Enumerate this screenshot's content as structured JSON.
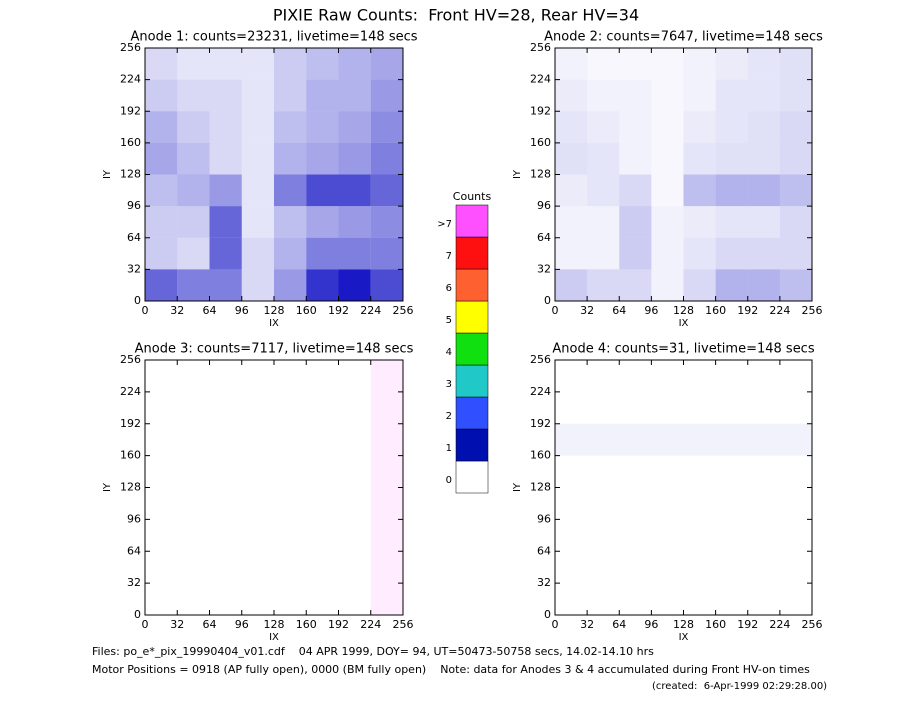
{
  "title": "PIXIE Raw Counts:  Front HV=28, Rear HV=34",
  "footer": [
    "Files: po_e*_pix_19990404_v01.cdf    04 APR 1999, DOY= 94, UT=50473-50758 secs, 14.02-14.10 hrs",
    "Motor Positions = 0918 (AP fully open), 0000 (BM fully open)    Note: data for Anodes 3 & 4 accumulated during Front HV-on times",
    "(created:  6-Apr-1999 02:29:28.00)"
  ],
  "colorbar": {
    "title": "Counts",
    "labels": [
      "0",
      "1",
      "2",
      "3",
      "4",
      "5",
      "6",
      "7",
      ">7"
    ],
    "colors": [
      "#ffffff",
      "#0010b0",
      "#3050ff",
      "#20c8c8",
      "#10e010",
      "#ffff00",
      "#ff6030",
      "#ff1010",
      "#ff50ff"
    ]
  },
  "chart_data": [
    {
      "type": "heatmap",
      "title": "Anode 1: counts=23231, livetime=148 secs",
      "xlabel": "IX",
      "ylabel": "IY",
      "xlim": [
        0,
        256
      ],
      "ylim": [
        0,
        256
      ],
      "xticks": [
        0,
        32,
        64,
        96,
        128,
        160,
        192,
        224,
        256
      ],
      "yticks": [
        0,
        32,
        64,
        96,
        128,
        160,
        192,
        224,
        256
      ],
      "color": "#0000c0",
      "z": [
        [
          0.6,
          0.5,
          0.5,
          0.15,
          0.4,
          0.8,
          0.9,
          0.7
        ],
        [
          0.2,
          0.15,
          0.6,
          0.15,
          0.3,
          0.5,
          0.5,
          0.5
        ],
        [
          0.2,
          0.2,
          0.6,
          0.1,
          0.25,
          0.35,
          0.4,
          0.45
        ],
        [
          0.25,
          0.3,
          0.4,
          0.1,
          0.5,
          0.7,
          0.7,
          0.6
        ],
        [
          0.35,
          0.25,
          0.15,
          0.1,
          0.3,
          0.35,
          0.4,
          0.5
        ],
        [
          0.3,
          0.2,
          0.15,
          0.1,
          0.25,
          0.3,
          0.35,
          0.45
        ],
        [
          0.2,
          0.15,
          0.15,
          0.1,
          0.2,
          0.3,
          0.3,
          0.4
        ],
        [
          0.15,
          0.1,
          0.1,
          0.1,
          0.2,
          0.25,
          0.3,
          0.35
        ]
      ]
    },
    {
      "type": "heatmap",
      "title": "Anode 2: counts=7647, livetime=148 secs",
      "xlabel": "IX",
      "ylabel": "IY",
      "xlim": [
        0,
        256
      ],
      "ylim": [
        0,
        256
      ],
      "xticks": [
        0,
        32,
        64,
        96,
        128,
        160,
        192,
        224,
        256
      ],
      "yticks": [
        0,
        32,
        64,
        96,
        128,
        160,
        192,
        224,
        256
      ],
      "color": "#0000c0",
      "z": [
        [
          0.2,
          0.15,
          0.15,
          0.05,
          0.15,
          0.3,
          0.3,
          0.25
        ],
        [
          0.05,
          0.05,
          0.2,
          0.05,
          0.1,
          0.15,
          0.15,
          0.15
        ],
        [
          0.05,
          0.05,
          0.2,
          0.05,
          0.08,
          0.1,
          0.1,
          0.15
        ],
        [
          0.08,
          0.1,
          0.15,
          0.03,
          0.25,
          0.3,
          0.3,
          0.25
        ],
        [
          0.12,
          0.1,
          0.05,
          0.03,
          0.1,
          0.12,
          0.12,
          0.15
        ],
        [
          0.1,
          0.08,
          0.05,
          0.03,
          0.08,
          0.1,
          0.12,
          0.15
        ],
        [
          0.08,
          0.05,
          0.05,
          0.03,
          0.05,
          0.1,
          0.1,
          0.12
        ],
        [
          0.05,
          0.03,
          0.03,
          0.03,
          0.05,
          0.08,
          0.1,
          0.12
        ]
      ]
    },
    {
      "type": "heatmap",
      "title": "Anode 3: counts=7117, livetime=148 secs",
      "xlabel": "IX",
      "ylabel": "IY",
      "xlim": [
        0,
        256
      ],
      "ylim": [
        0,
        256
      ],
      "xticks": [
        0,
        32,
        64,
        96,
        128,
        160,
        192,
        224,
        256
      ],
      "yticks": [
        0,
        32,
        64,
        96,
        128,
        160,
        192,
        224,
        256
      ],
      "color": "#ff50ff",
      "z": [
        [
          0,
          0,
          0,
          0,
          0,
          0,
          0,
          0.1
        ],
        [
          0,
          0,
          0,
          0,
          0,
          0,
          0,
          0.1
        ],
        [
          0,
          0,
          0,
          0,
          0,
          0,
          0,
          0.1
        ],
        [
          0,
          0,
          0,
          0,
          0,
          0,
          0,
          0.1
        ],
        [
          0,
          0,
          0,
          0,
          0,
          0,
          0,
          0.1
        ],
        [
          0,
          0,
          0,
          0,
          0,
          0,
          0,
          0.1
        ],
        [
          0,
          0,
          0,
          0,
          0,
          0,
          0,
          0.1
        ],
        [
          0,
          0,
          0,
          0,
          0,
          0,
          0,
          0.1
        ]
      ]
    },
    {
      "type": "heatmap",
      "title": "Anode 4: counts=31, livetime=148 secs",
      "xlabel": "IX",
      "ylabel": "IY",
      "xlim": [
        0,
        256
      ],
      "ylim": [
        0,
        256
      ],
      "xticks": [
        0,
        32,
        64,
        96,
        128,
        160,
        192,
        224,
        256
      ],
      "yticks": [
        0,
        32,
        64,
        96,
        128,
        160,
        192,
        224,
        256
      ],
      "color": "#0000c0",
      "z": [
        [
          0,
          0,
          0,
          0,
          0,
          0,
          0,
          0
        ],
        [
          0,
          0,
          0,
          0,
          0,
          0,
          0,
          0
        ],
        [
          0,
          0,
          0,
          0,
          0,
          0,
          0,
          0
        ],
        [
          0,
          0,
          0,
          0,
          0,
          0,
          0,
          0
        ],
        [
          0,
          0,
          0,
          0,
          0,
          0,
          0,
          0
        ],
        [
          0.05,
          0.05,
          0.05,
          0.05,
          0.05,
          0.05,
          0.05,
          0.05
        ],
        [
          0,
          0,
          0,
          0,
          0,
          0,
          0,
          0
        ],
        [
          0,
          0,
          0,
          0,
          0,
          0,
          0,
          0
        ]
      ]
    }
  ]
}
